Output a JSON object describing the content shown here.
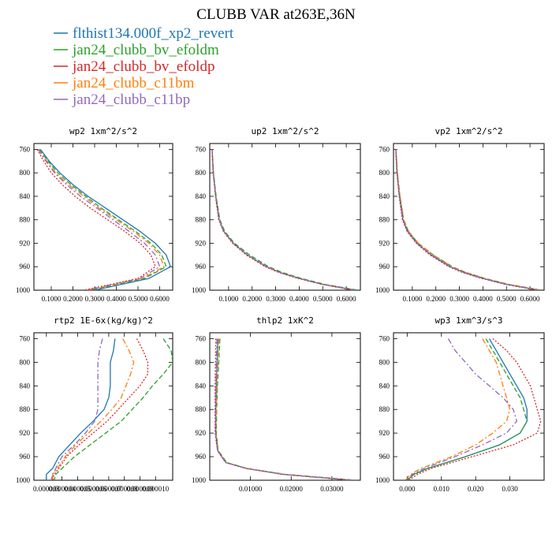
{
  "figure": {
    "title": "CLUBB VAR at263E,36N",
    "legend": [
      {
        "label": "flthist134.000f_xp2_revert",
        "color": "#1f77b4",
        "dash": "solid"
      },
      {
        "label": "jan24_clubb_bv_efoldm",
        "color": "#2ca02c",
        "dash": "dashed"
      },
      {
        "label": "jan24_clubb_bv_efoldp",
        "color": "#d62728",
        "dash": "dotted"
      },
      {
        "label": "jan24_clubb_c11bm",
        "color": "#ff7f0e",
        "dash": "dashdot"
      },
      {
        "label": "jan24_clubb_c11bp",
        "color": "#9467bd",
        "dash": "dashdot"
      }
    ]
  },
  "chart_data": [
    {
      "type": "line",
      "title": "wp2  1xm^2/s^2",
      "ylim": [
        1000,
        750
      ],
      "yticks": [
        "760",
        "800",
        "840",
        "880",
        "920",
        "960",
        "1000"
      ],
      "ytick_values": [
        760,
        800,
        840,
        880,
        920,
        960,
        1000
      ],
      "xlim": [
        0.02,
        0.66
      ],
      "xticks": [
        "0.1000",
        "0.2000",
        "0.3000",
        "0.4000",
        "0.5000",
        "0.6000"
      ],
      "xtick_values": [
        0.1,
        0.2,
        0.3,
        0.4,
        0.5,
        0.6
      ],
      "pressure": [
        760,
        780,
        800,
        820,
        840,
        860,
        880,
        900,
        920,
        940,
        960,
        980,
        1000
      ],
      "series": [
        {
          "name": "flthist134.000f_xp2_revert",
          "values": [
            0.05,
            0.09,
            0.14,
            0.2,
            0.27,
            0.35,
            0.43,
            0.51,
            0.58,
            0.63,
            0.65,
            0.55,
            0.3
          ]
        },
        {
          "name": "jan24_clubb_bv_efoldm",
          "values": [
            0.045,
            0.085,
            0.13,
            0.19,
            0.26,
            0.33,
            0.41,
            0.49,
            0.56,
            0.61,
            0.63,
            0.53,
            0.28
          ]
        },
        {
          "name": "jan24_clubb_bv_efoldp",
          "values": [
            0.035,
            0.065,
            0.1,
            0.15,
            0.21,
            0.28,
            0.36,
            0.44,
            0.51,
            0.56,
            0.58,
            0.5,
            0.25
          ]
        },
        {
          "name": "jan24_clubb_c11bm",
          "values": [
            0.04,
            0.08,
            0.12,
            0.18,
            0.25,
            0.32,
            0.4,
            0.48,
            0.55,
            0.6,
            0.62,
            0.52,
            0.27
          ]
        },
        {
          "name": "jan24_clubb_c11bp",
          "values": [
            0.04,
            0.075,
            0.115,
            0.17,
            0.235,
            0.31,
            0.385,
            0.46,
            0.53,
            0.58,
            0.6,
            0.51,
            0.26
          ]
        }
      ]
    },
    {
      "type": "line",
      "title": "up2  1xm^2/s^2",
      "ylim": [
        1000,
        750
      ],
      "yticks": [
        "760",
        "800",
        "840",
        "880",
        "920",
        "960",
        "1000"
      ],
      "ytick_values": [
        760,
        800,
        840,
        880,
        920,
        960,
        1000
      ],
      "xlim": [
        0.02,
        0.66
      ],
      "xticks": [
        "0.1000",
        "0.2000",
        "0.3000",
        "0.4000",
        "0.5000",
        "0.6000"
      ],
      "xtick_values": [
        0.1,
        0.2,
        0.3,
        0.4,
        0.5,
        0.6
      ],
      "pressure": [
        760,
        800,
        840,
        880,
        900,
        920,
        940,
        960,
        970,
        980,
        990,
        1000
      ],
      "series": [
        {
          "name": "flthist134.000f_xp2_revert",
          "values": [
            0.03,
            0.035,
            0.045,
            0.06,
            0.08,
            0.12,
            0.18,
            0.26,
            0.32,
            0.4,
            0.5,
            0.64
          ]
        },
        {
          "name": "jan24_clubb_bv_efoldm",
          "values": [
            0.03,
            0.036,
            0.047,
            0.063,
            0.084,
            0.125,
            0.19,
            0.27,
            0.33,
            0.41,
            0.51,
            0.65
          ]
        },
        {
          "name": "jan24_clubb_bv_efoldp",
          "values": [
            0.029,
            0.034,
            0.044,
            0.058,
            0.078,
            0.117,
            0.175,
            0.255,
            0.315,
            0.395,
            0.495,
            0.63
          ]
        },
        {
          "name": "jan24_clubb_c11bm",
          "values": [
            0.03,
            0.035,
            0.045,
            0.06,
            0.08,
            0.12,
            0.18,
            0.26,
            0.32,
            0.4,
            0.5,
            0.64
          ]
        },
        {
          "name": "jan24_clubb_c11bp",
          "values": [
            0.03,
            0.035,
            0.046,
            0.061,
            0.081,
            0.121,
            0.182,
            0.262,
            0.322,
            0.402,
            0.502,
            0.64
          ]
        }
      ]
    },
    {
      "type": "line",
      "title": "vp2  1xm^2/s^2",
      "ylim": [
        1000,
        750
      ],
      "yticks": [
        "760",
        "800",
        "840",
        "880",
        "920",
        "960",
        "1000"
      ],
      "ytick_values": [
        760,
        800,
        840,
        880,
        920,
        960,
        1000
      ],
      "xlim": [
        0.02,
        0.66
      ],
      "xticks": [
        "0.1000",
        "0.2000",
        "0.3000",
        "0.4000",
        "0.5000",
        "0.6000"
      ],
      "xtick_values": [
        0.1,
        0.2,
        0.3,
        0.4,
        0.5,
        0.6
      ],
      "pressure": [
        760,
        800,
        840,
        880,
        900,
        920,
        940,
        960,
        970,
        980,
        990,
        1000
      ],
      "series": [
        {
          "name": "flthist134.000f_xp2_revert",
          "values": [
            0.03,
            0.035,
            0.045,
            0.06,
            0.08,
            0.12,
            0.18,
            0.26,
            0.32,
            0.4,
            0.5,
            0.64
          ]
        },
        {
          "name": "jan24_clubb_bv_efoldm",
          "values": [
            0.03,
            0.036,
            0.047,
            0.063,
            0.084,
            0.125,
            0.19,
            0.27,
            0.33,
            0.41,
            0.51,
            0.65
          ]
        },
        {
          "name": "jan24_clubb_bv_efoldp",
          "values": [
            0.029,
            0.034,
            0.044,
            0.058,
            0.078,
            0.117,
            0.175,
            0.255,
            0.315,
            0.395,
            0.495,
            0.63
          ]
        },
        {
          "name": "jan24_clubb_c11bm",
          "values": [
            0.031,
            0.037,
            0.048,
            0.064,
            0.085,
            0.126,
            0.19,
            0.268,
            0.328,
            0.406,
            0.506,
            0.645
          ]
        },
        {
          "name": "jan24_clubb_c11bp",
          "values": [
            0.03,
            0.035,
            0.046,
            0.061,
            0.081,
            0.121,
            0.182,
            0.262,
            0.322,
            0.402,
            0.502,
            0.64
          ]
        }
      ]
    },
    {
      "type": "line",
      "title": "rtp2  1E-6x(kg/kg)^2",
      "ylim": [
        1000,
        750
      ],
      "yticks": [
        "760",
        "800",
        "840",
        "880",
        "920",
        "960",
        "1000"
      ],
      "ytick_values": [
        760,
        800,
        840,
        880,
        920,
        960,
        1000
      ],
      "xlim": [
        2.2e-06,
        1.11e-05
      ],
      "xticks": [
        "0.000003",
        "0.000004",
        "0.000005",
        "0.000006",
        "0.000007",
        "0.000008",
        "0.000009",
        "0.000010"
      ],
      "xtick_values": [
        3e-06,
        4e-06,
        5e-06,
        6e-06,
        7e-06,
        8e-06,
        9e-06,
        1e-05
      ],
      "pressure": [
        760,
        780,
        800,
        820,
        840,
        860,
        880,
        900,
        920,
        940,
        960,
        980,
        990,
        1000
      ],
      "series": [
        {
          "name": "flthist134.000f_xp2_revert",
          "values": [
            7.4e-06,
            7.3e-06,
            7.1e-06,
            7.1e-06,
            7.1e-06,
            7e-06,
            6.7e-06,
            6e-06,
            5.2e-06,
            4.5e-06,
            3.8e-06,
            3.4e-06,
            3e-06,
            3e-06
          ]
        },
        {
          "name": "jan24_clubb_bv_efoldm",
          "values": [
            1.05e-05,
            1.1e-05,
            1.11e-05,
            1.05e-05,
            9.8e-06,
            9.2e-06,
            8.5e-06,
            7.8e-06,
            6.8e-06,
            5.8e-06,
            4.8e-06,
            4e-06,
            3.6e-06,
            3.5e-06
          ]
        },
        {
          "name": "jan24_clubb_bv_efoldp",
          "values": [
            8.8e-06,
            9.2e-06,
            9.5e-06,
            9.5e-06,
            9e-06,
            8.3e-06,
            7.6e-06,
            6.9e-06,
            6e-06,
            5.1e-06,
            4.3e-06,
            3.8e-06,
            3.5e-06,
            3.4e-06
          ]
        },
        {
          "name": "jan24_clubb_c11bm",
          "values": [
            7.9e-06,
            8.3e-06,
            8.6e-06,
            8.4e-06,
            8.1e-06,
            7.8e-06,
            7.2e-06,
            6.5e-06,
            5.7e-06,
            4.9e-06,
            4.2e-06,
            3.7e-06,
            3.4e-06,
            3.4e-06
          ]
        },
        {
          "name": "jan24_clubb_c11bp",
          "values": [
            6.6e-06,
            6.4e-06,
            6.3e-06,
            6.3e-06,
            6.3e-06,
            6.3e-06,
            6.3e-06,
            6.1e-06,
            5.5e-06,
            4.8e-06,
            4e-06,
            3.6e-06,
            3.4e-06,
            3.3e-06
          ]
        }
      ]
    },
    {
      "type": "line",
      "title": "thlp2  1xK^2",
      "ylim": [
        1000,
        750
      ],
      "yticks": [
        "760",
        "800",
        "840",
        "880",
        "920",
        "960",
        "1000"
      ],
      "ytick_values": [
        760,
        800,
        840,
        880,
        920,
        960,
        1000
      ],
      "xlim": [
        0.0,
        0.037
      ],
      "xticks": [
        "0.01000",
        "0.02000",
        "0.03000"
      ],
      "xtick_values": [
        0.01,
        0.02,
        0.03
      ],
      "pressure": [
        760,
        800,
        840,
        880,
        920,
        950,
        970,
        980,
        990,
        1000
      ],
      "series": [
        {
          "name": "flthist134.000f_xp2_revert",
          "values": [
            0.002,
            0.0018,
            0.0016,
            0.0015,
            0.0015,
            0.002,
            0.004,
            0.009,
            0.018,
            0.035
          ]
        },
        {
          "name": "jan24_clubb_bv_efoldm",
          "values": [
            0.0025,
            0.0022,
            0.0019,
            0.0017,
            0.0016,
            0.0021,
            0.0042,
            0.0092,
            0.0185,
            0.036
          ]
        },
        {
          "name": "jan24_clubb_bv_efoldp",
          "values": [
            0.0015,
            0.0014,
            0.0013,
            0.0013,
            0.0013,
            0.0019,
            0.0039,
            0.0088,
            0.0178,
            0.0345
          ]
        },
        {
          "name": "jan24_clubb_c11bm",
          "values": [
            0.0022,
            0.002,
            0.0018,
            0.0016,
            0.0015,
            0.002,
            0.004,
            0.009,
            0.018,
            0.035
          ]
        },
        {
          "name": "jan24_clubb_c11bp",
          "values": [
            0.0018,
            0.0016,
            0.0015,
            0.0014,
            0.0014,
            0.0019,
            0.0039,
            0.0089,
            0.0179,
            0.035
          ]
        }
      ]
    },
    {
      "type": "line",
      "title": "wp3  1xm^3/s^3",
      "ylim": [
        1000,
        750
      ],
      "yticks": [
        "760",
        "800",
        "840",
        "880",
        "920",
        "960",
        "1000"
      ],
      "ytick_values": [
        760,
        800,
        840,
        880,
        920,
        960,
        1000
      ],
      "xlim": [
        -0.004,
        0.04
      ],
      "xticks": [
        "0.000",
        "0.010",
        "0.020",
        "0.030"
      ],
      "xtick_values": [
        0.0,
        0.01,
        0.02,
        0.03
      ],
      "pressure": [
        760,
        780,
        800,
        820,
        840,
        860,
        880,
        900,
        920,
        940,
        960,
        980,
        990,
        1000
      ],
      "series": [
        {
          "name": "flthist134.000f_xp2_revert",
          "values": [
            0.024,
            0.026,
            0.028,
            0.03,
            0.032,
            0.034,
            0.035,
            0.035,
            0.033,
            0.027,
            0.017,
            0.006,
            0.002,
            0.0
          ]
        },
        {
          "name": "jan24_clubb_bv_efoldm",
          "values": [
            0.023,
            0.025,
            0.027,
            0.029,
            0.031,
            0.033,
            0.034,
            0.035,
            0.033,
            0.027,
            0.017,
            0.006,
            0.002,
            0.0
          ]
        },
        {
          "name": "jan24_clubb_bv_efoldp",
          "values": [
            0.025,
            0.029,
            0.032,
            0.034,
            0.036,
            0.037,
            0.038,
            0.039,
            0.038,
            0.031,
            0.019,
            0.007,
            0.003,
            0.0005
          ]
        },
        {
          "name": "jan24_clubb_c11bm",
          "values": [
            0.022,
            0.024,
            0.026,
            0.027,
            0.028,
            0.029,
            0.03,
            0.029,
            0.025,
            0.02,
            0.013,
            0.004,
            0.001,
            -0.0005
          ]
        },
        {
          "name": "jan24_clubb_c11bp",
          "values": [
            0.012,
            0.014,
            0.017,
            0.02,
            0.024,
            0.028,
            0.031,
            0.032,
            0.029,
            0.022,
            0.014,
            0.005,
            0.0015,
            -0.0003
          ]
        }
      ]
    }
  ]
}
